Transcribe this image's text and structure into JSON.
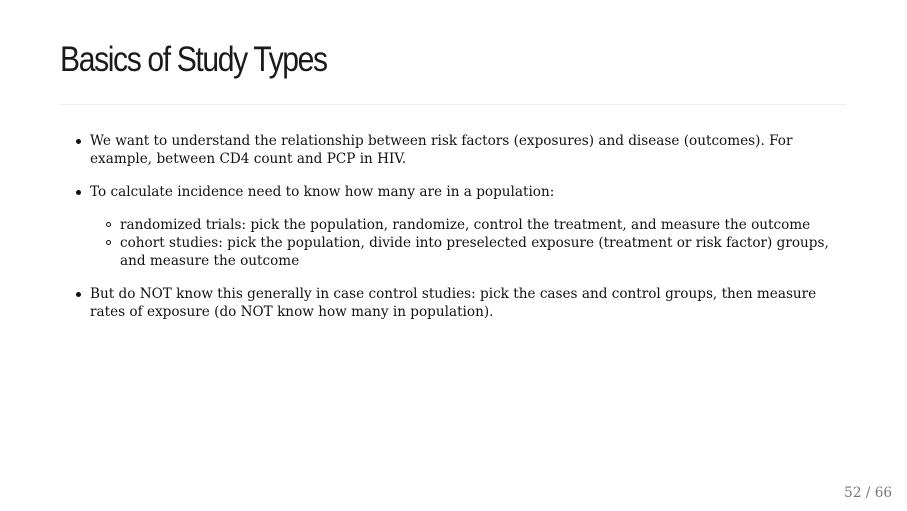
{
  "slide": {
    "title": "Basics of Study Types",
    "bullets": [
      {
        "text": "We want to understand the relationship between risk factors (exposures) and disease (outcomes). For example, between CD4 count and PCP in HIV."
      },
      {
        "text": "To calculate incidence need to know how many are in a population:",
        "sub": [
          "randomized trials: pick the population, randomize, control the treatment, and measure the outcome",
          "cohort studies: pick the population, divide into preselected exposure (treatment or risk factor) groups, and measure the outcome"
        ]
      },
      {
        "text": "But do NOT know this generally in case control studies: pick the cases and control groups, then measure rates of exposure (do NOT know how many in population)."
      }
    ],
    "page_number": "52 / 66"
  }
}
